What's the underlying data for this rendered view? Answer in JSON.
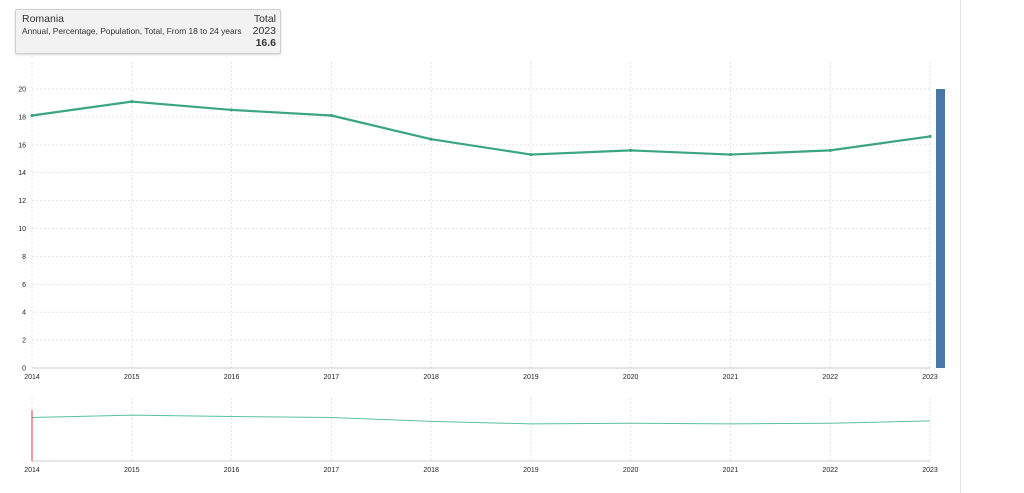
{
  "tooltip": {
    "country": "Romania",
    "description": "Annual, Percentage, Population, Total, From 18 to 24 years",
    "series_label": "Total",
    "year": "2023",
    "value": "16.6"
  },
  "colors": {
    "line": "#3aa57f",
    "overview_line": "#59c29d",
    "scroll_handle": "#4a77a8",
    "grid": "#d9d9d9",
    "selector_marker": "#e05b5b"
  },
  "chart_data": {
    "type": "line",
    "x": [
      2014,
      2015,
      2016,
      2017,
      2018,
      2019,
      2020,
      2021,
      2022,
      2023
    ],
    "series": [
      {
        "values": [
          18.1,
          19.1,
          18.5,
          18.1,
          16.4,
          15.3,
          15.6,
          15.3,
          15.6,
          16.6
        ]
      }
    ],
    "xlim": [
      2014,
      2023
    ],
    "ylim": [
      0,
      20
    ],
    "yticks": [
      "0",
      "2",
      "4",
      "6",
      "8",
      "10",
      "12",
      "14",
      "16",
      "18",
      "20"
    ],
    "xticks": [
      "2014",
      "2015",
      "2016",
      "2017",
      "2018",
      "2019",
      "2020",
      "2021",
      "2022",
      "2023"
    ],
    "grid": true,
    "title": "",
    "xlabel": "",
    "ylabel": ""
  }
}
